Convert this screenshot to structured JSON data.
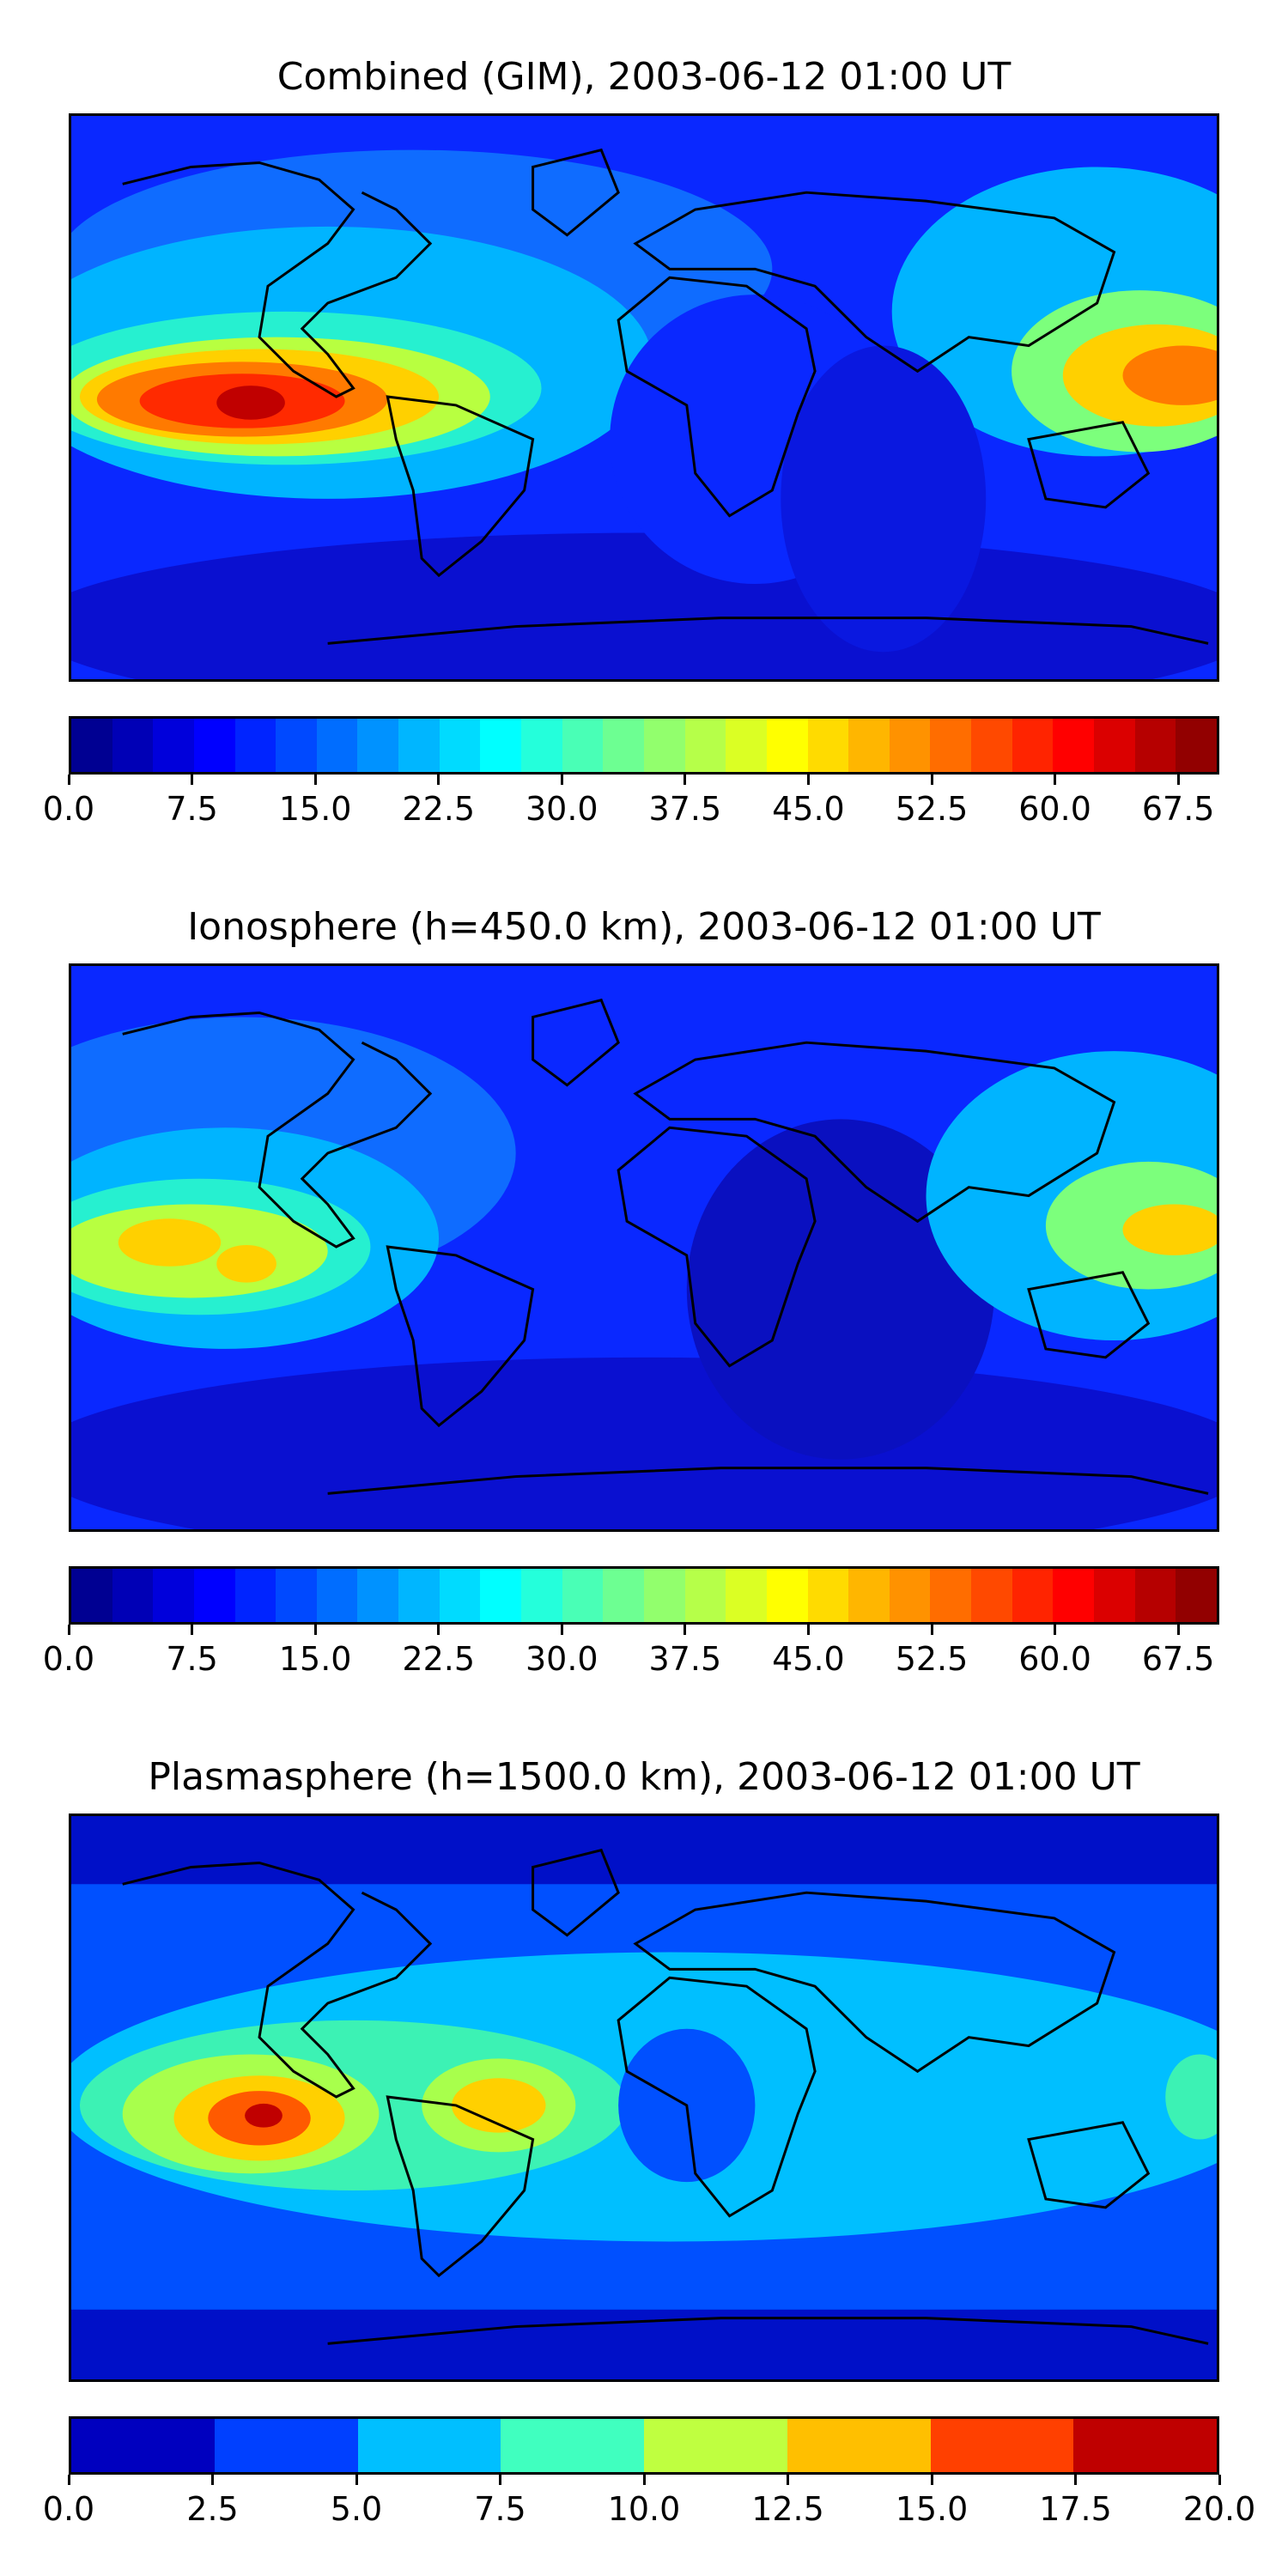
{
  "panels": [
    {
      "title": "Combined (GIM), 2003-06-12 01:00 UT",
      "colorbar": {
        "min": 0,
        "max": 70,
        "levels": 28,
        "tick_labels": [
          "0.0",
          "7.5",
          "15.0",
          "22.5",
          "30.0",
          "37.5",
          "45.0",
          "52.5",
          "60.0",
          "67.5"
        ],
        "tick_values": [
          0,
          7.5,
          15,
          22.5,
          30,
          37.5,
          45,
          52.5,
          60,
          67.5
        ]
      }
    },
    {
      "title": "Ionosphere  (h=450.0 km), 2003-06-12 01:00 UT",
      "colorbar": {
        "min": 0,
        "max": 70,
        "levels": 28,
        "tick_labels": [
          "0.0",
          "7.5",
          "15.0",
          "22.5",
          "30.0",
          "37.5",
          "45.0",
          "52.5",
          "60.0",
          "67.5"
        ],
        "tick_values": [
          0,
          7.5,
          15,
          22.5,
          30,
          37.5,
          45,
          52.5,
          60,
          67.5
        ]
      }
    },
    {
      "title": "Plasmasphere (h=1500.0 km), 2003-06-12 01:00 UT",
      "colorbar": {
        "min": 0,
        "max": 20,
        "levels": 8,
        "tick_labels": [
          "0.0",
          "2.5",
          "5.0",
          "7.5",
          "10.0",
          "12.5",
          "15.0",
          "17.5",
          "20.0"
        ],
        "tick_values": [
          0,
          2.5,
          5,
          7.5,
          10,
          12.5,
          15,
          17.5,
          20
        ]
      }
    }
  ],
  "colormap": "jet",
  "coastline_color": "#000000"
}
